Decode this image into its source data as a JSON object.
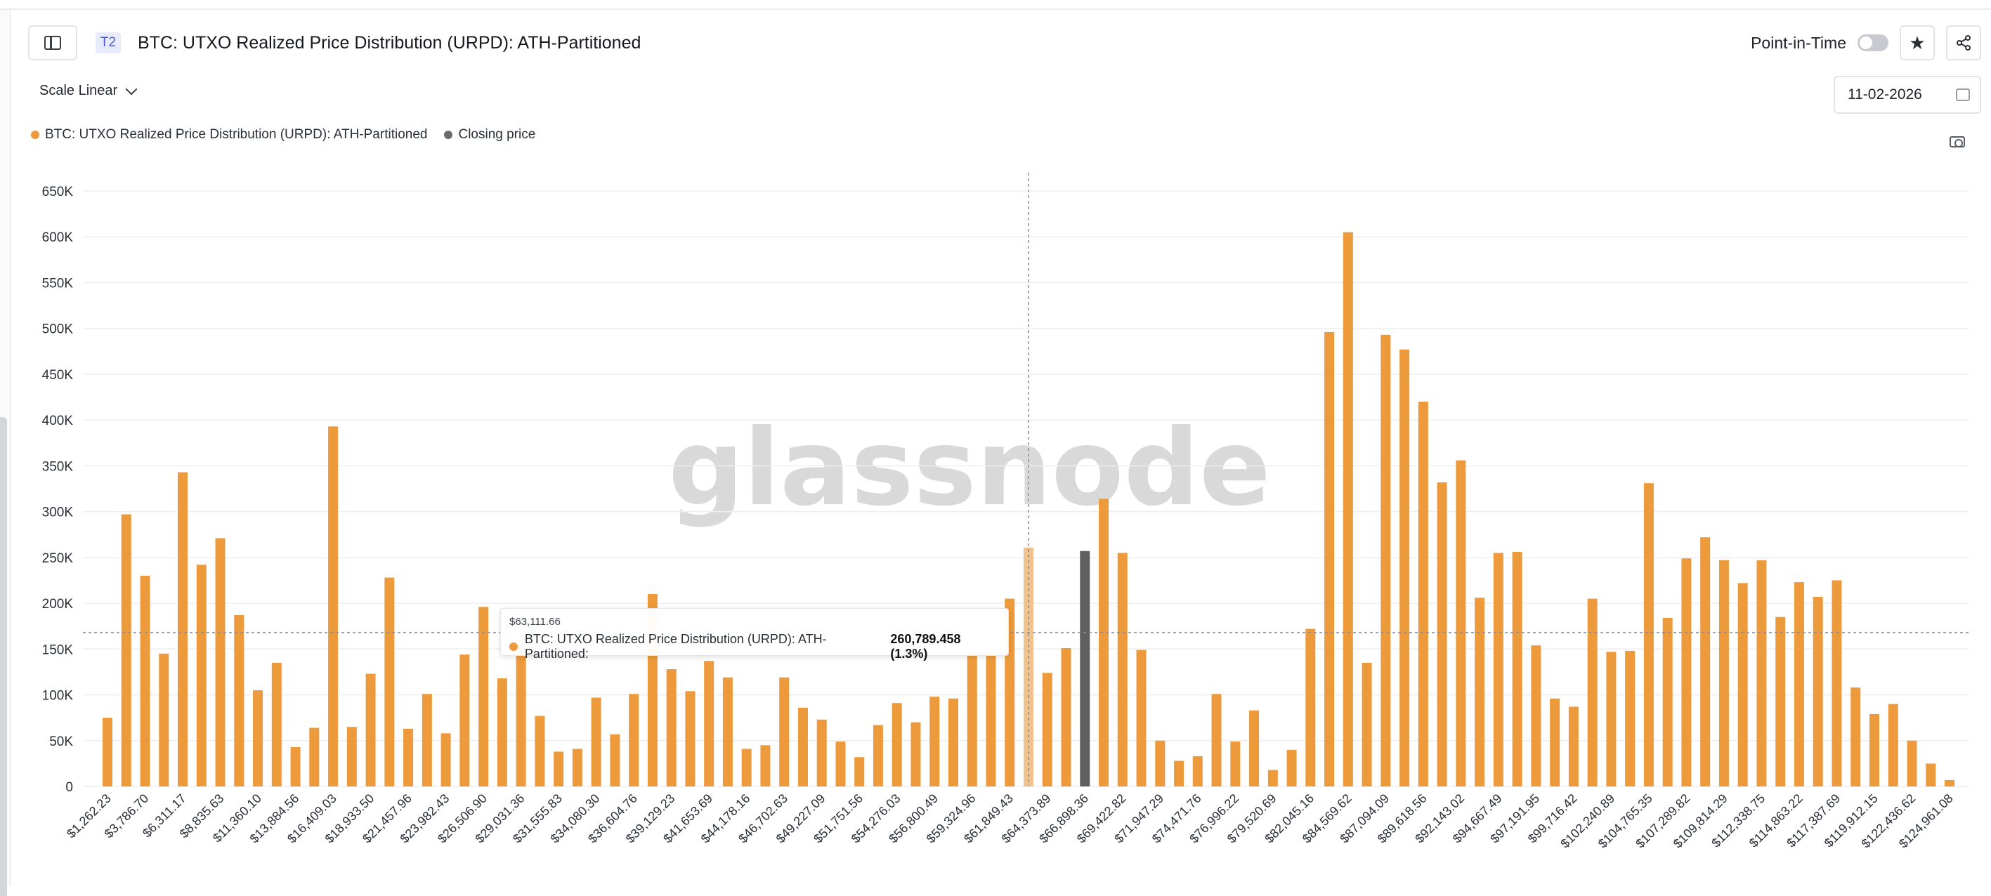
{
  "header": {
    "tier_badge": "T2",
    "title": "BTC: UTXO Realized Price Distribution (URPD): ATH-Partitioned",
    "point_in_time_label": "Point-in-Time",
    "star_icon": "star-icon",
    "share_icon": "share-icon"
  },
  "controls": {
    "scale_label": "Scale Linear",
    "date": "11-02-2026"
  },
  "legend": [
    {
      "label": "BTC: UTXO Realized Price Distribution (URPD): ATH-Partitioned",
      "color": "#ED9A3D"
    },
    {
      "label": "Closing price",
      "color": "#6B6B6B"
    }
  ],
  "watermark": "glassnode",
  "tooltip": {
    "price": "$63,111.66",
    "series": "BTC: UTXO Realized Price Distribution (URPD): ATH-Partitioned:",
    "value": "260,789.458 (1.3%)"
  },
  "colors": {
    "bar": "#ED9A3D",
    "bar_hover": "#F2C28C",
    "closing_price_bar": "#5F5F5F",
    "grid": "#EDEEF0",
    "axis_text": "#2A2E35"
  },
  "chart_data": {
    "type": "bar",
    "ylim": [
      0,
      650000
    ],
    "yticks": [
      0,
      50000,
      100000,
      150000,
      200000,
      250000,
      300000,
      350000,
      400000,
      450000,
      500000,
      550000,
      600000,
      650000
    ],
    "ytick_labels": [
      "0",
      "50K",
      "100K",
      "150K",
      "200K",
      "250K",
      "300K",
      "350K",
      "400K",
      "450K",
      "500K",
      "550K",
      "600K",
      "650K"
    ],
    "xtick_labels": [
      "$1,262.23",
      "$3,786.70",
      "$6,311.17",
      "$8,835.63",
      "$11,360.10",
      "$13,884.56",
      "$16,409.03",
      "$18,933.50",
      "$21,457.96",
      "$23,982.43",
      "$26,506.90",
      "$29,031.36",
      "$31,555.83",
      "$34,080.30",
      "$36,604.76",
      "$39,129.23",
      "$41,653.69",
      "$44,178.16",
      "$46,702.63",
      "$49,227.09",
      "$51,751.56",
      "$54,276.03",
      "$56,800.49",
      "$59,324.96",
      "$61,849.43",
      "$64,373.89",
      "$66,898.36",
      "$69,422.82",
      "$71,947.29",
      "$74,471.76",
      "$76,996.22",
      "$79,520.69",
      "$82,045.16",
      "$84,569.62",
      "$87,094.09",
      "$89,618.56",
      "$92,143.02",
      "$94,667.49",
      "$97,191.95",
      "$99,716.42",
      "$102,240.89",
      "$104,765.35",
      "$107,289.82",
      "$109,814.29",
      "$112,338.75",
      "$114,863.22",
      "$117,387.69",
      "$119,912.15",
      "$122,436.62",
      "$124,961.08"
    ],
    "values": [
      75000,
      297000,
      230000,
      145000,
      343000,
      242000,
      271000,
      187000,
      105000,
      135000,
      43000,
      64000,
      393000,
      65000,
      123000,
      228000,
      63000,
      101000,
      58000,
      144000,
      196000,
      118000,
      152000,
      77000,
      38000,
      41000,
      97000,
      57000,
      101000,
      210000,
      128000,
      104000,
      137000,
      119000,
      41000,
      45000,
      119000,
      86000,
      73000,
      49000,
      32000,
      67000,
      91000,
      70000,
      98000,
      96000,
      145000,
      148000,
      205000,
      260789,
      124000,
      151000,
      257000,
      314000,
      255000,
      149000,
      50000,
      28000,
      33000,
      101000,
      49000,
      83000,
      18000,
      40000,
      172000,
      496000,
      605000,
      135000,
      493000,
      477000,
      420000,
      332000,
      356000,
      206000,
      255000,
      256000,
      154000,
      96000,
      87000,
      205000,
      147000,
      148000,
      331000,
      184000,
      249000,
      272000,
      247000,
      222000,
      247000,
      185000,
      223000,
      207000,
      225000,
      108000,
      79000,
      90000,
      50000,
      25000,
      7000
    ],
    "closing_price_index": 52,
    "highlight_index": 49
  }
}
